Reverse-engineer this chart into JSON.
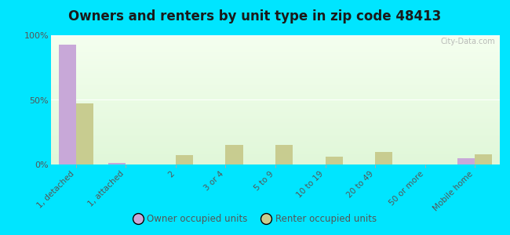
{
  "title": "Owners and renters by unit type in zip code 48413",
  "categories": [
    "1, detached",
    "1, attached",
    "2",
    "3 or 4",
    "5 to 9",
    "10 to 19",
    "20 to 49",
    "50 or more",
    "Mobile home"
  ],
  "owner_values": [
    93,
    1.5,
    0,
    0,
    0,
    0,
    0,
    0,
    5
  ],
  "renter_values": [
    47,
    0,
    7,
    15,
    15,
    6,
    10,
    0,
    8
  ],
  "owner_color": "#c8a8d8",
  "renter_color": "#c8cc90",
  "outer_bg": "#00e5ff",
  "yticks": [
    0,
    50,
    100
  ],
  "ytick_labels": [
    "0%",
    "50%",
    "100%"
  ],
  "bar_width": 0.35,
  "legend_owner": "Owner occupied units",
  "legend_renter": "Renter occupied units",
  "watermark": "City-Data.com",
  "title_fontsize": 12,
  "tick_fontsize": 7.5,
  "ytick_fontsize": 8.0
}
